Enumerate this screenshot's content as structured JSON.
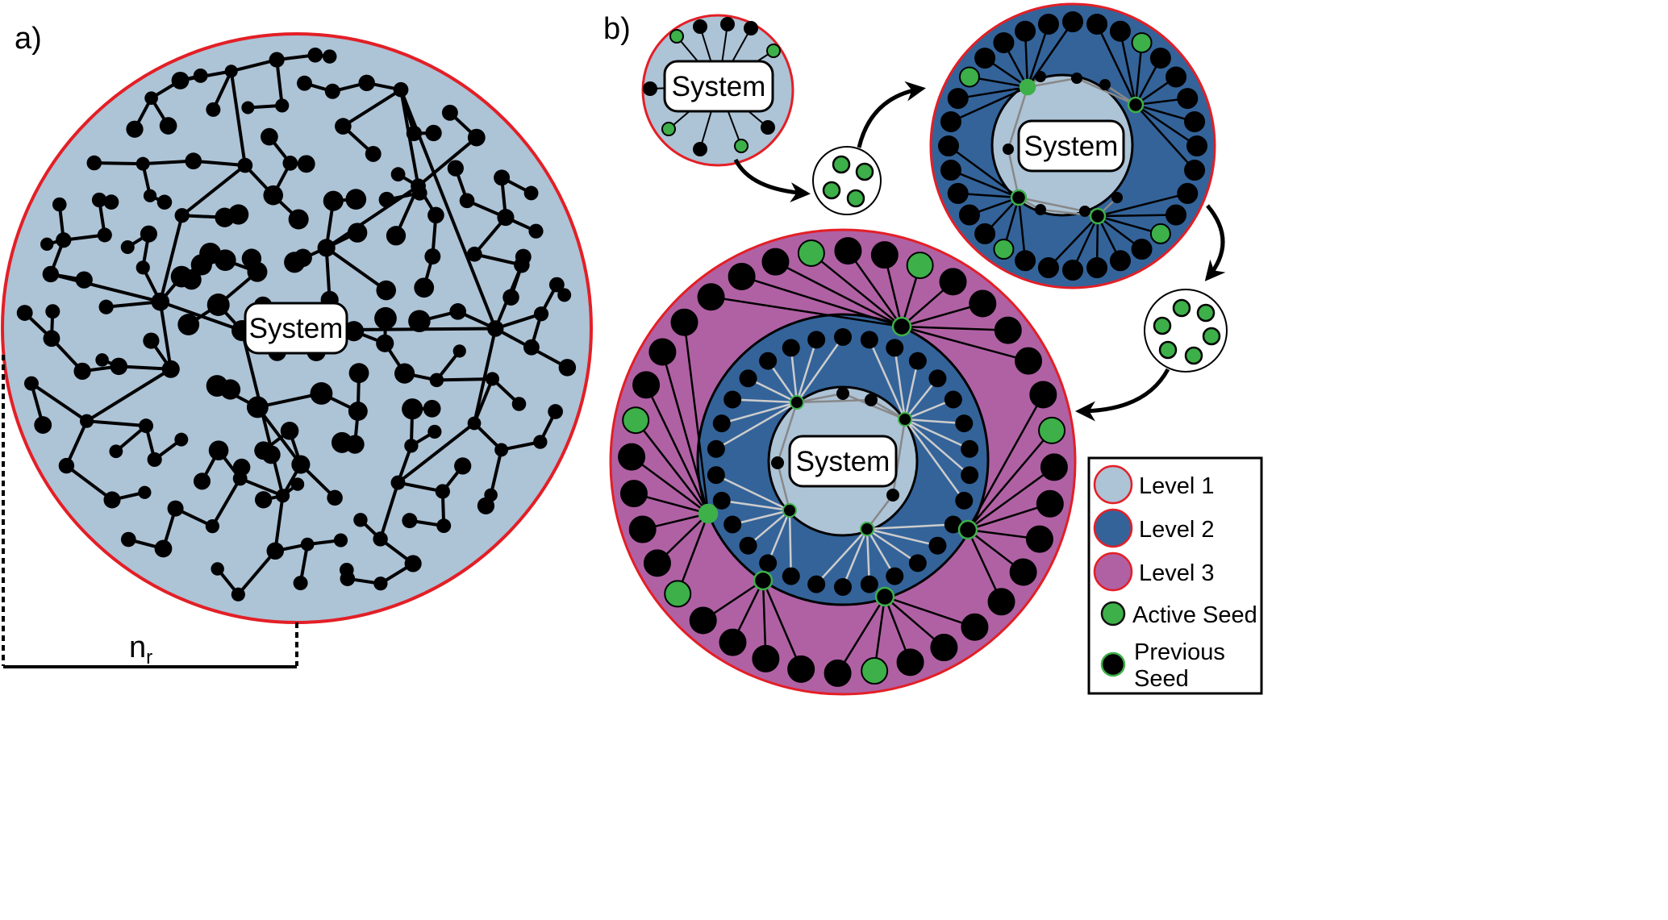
{
  "panels": {
    "a": {
      "label": "a)",
      "center_label": "System",
      "radius_label_main": "n",
      "radius_label_sub": "r"
    },
    "b": {
      "label": "b)",
      "center_label": "System"
    }
  },
  "legend": {
    "items": [
      {
        "id": "level-1",
        "label": "Level 1",
        "color": "#adc3d6",
        "border": "#e31f26"
      },
      {
        "id": "level-2",
        "label": "Level 2",
        "color": "#336399",
        "border": "#e31f26"
      },
      {
        "id": "level-3",
        "label": "Level 3",
        "color": "#b061a4",
        "border": "#e31f26"
      },
      {
        "id": "active-seed",
        "label": "Active Seed",
        "color": "#3db049",
        "border": "#111111"
      },
      {
        "id": "previous-seed",
        "label": "Previous Seed",
        "label_lines": [
          "Previous",
          "Seed"
        ],
        "color": "#000000",
        "border": "#3db049"
      }
    ]
  },
  "colors": {
    "level1": "#adc3d6",
    "level2": "#336399",
    "level3": "#b061a4",
    "border": "#e31f26",
    "active_seed": "#3db049",
    "node": "#000000"
  }
}
